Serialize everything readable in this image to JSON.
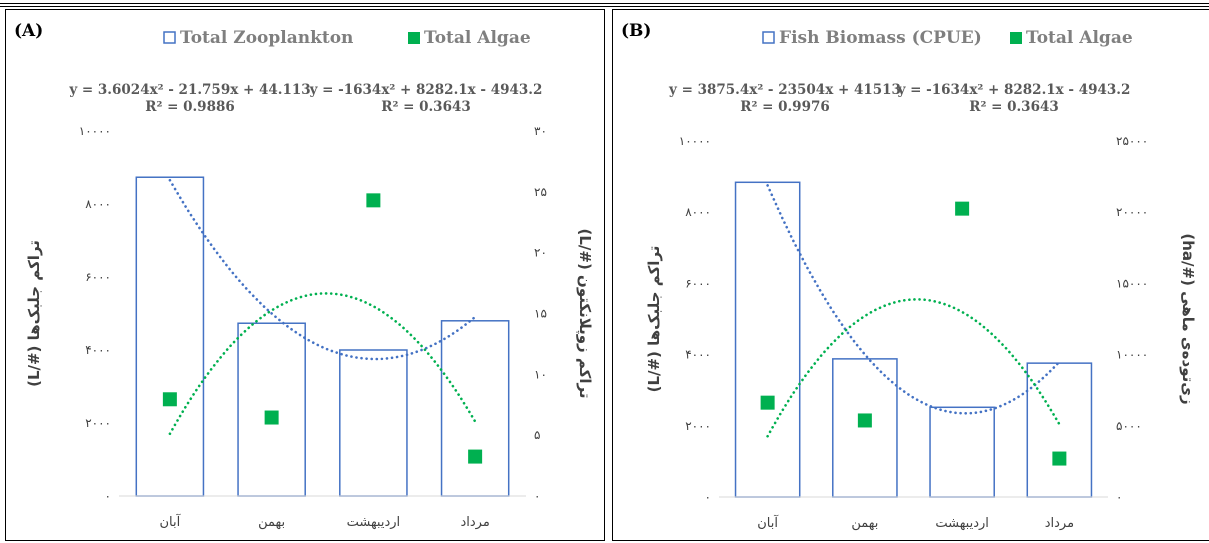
{
  "chart_data": [
    {
      "type": "bar",
      "panel_label": "(A)",
      "categories": [
        "آبان",
        "بهمن",
        "اردیبهشت",
        "مرداد"
      ],
      "series": [
        {
          "name": "Total Zooplankton",
          "kind": "bar",
          "axis": "right",
          "values": [
            26.2,
            14.2,
            12.0,
            14.4
          ],
          "color": "#4472c4"
        },
        {
          "name": "Total Algae",
          "kind": "marker",
          "axis": "left",
          "values": [
            2650,
            2150,
            8100,
            1080
          ],
          "color": "#00b050"
        }
      ],
      "trendlines": [
        {
          "series": "Total Zooplankton",
          "equation": "y = 3.6024x² - 21.759x + 44.113",
          "r2": "R² = 0.9886",
          "coef": [
            3.6024,
            -21.759,
            44.113
          ],
          "axis": "right",
          "color": "#4472c4"
        },
        {
          "series": "Total Algae",
          "equation": "y = -1634x² + 8282.1x - 4943.2",
          "r2": "R² = 0.3643",
          "coef": [
            -1634,
            8282.1,
            -4943.2
          ],
          "axis": "left",
          "color": "#00b050"
        }
      ],
      "ylabel_left": "تراکم جلبک‌ها (#/L)",
      "ylabel_right": "تراکم زوپلانکتون (#/L)",
      "ylim_left": [
        0,
        10000
      ],
      "ylim_right": [
        0,
        30
      ],
      "yticks_left": [
        "۰",
        "۲۰۰۰",
        "۴۰۰۰",
        "۶۰۰۰",
        "۸۰۰۰",
        "۱۰۰۰۰"
      ],
      "yticks_right": [
        "۰",
        "۵",
        "۱۰",
        "۱۵",
        "۲۰",
        "۲۵",
        "۳۰"
      ],
      "legend_position": "top-center",
      "grid": false
    },
    {
      "type": "bar",
      "panel_label": "(B)",
      "categories": [
        "آبان",
        "بهمن",
        "اردیبهشت",
        "مرداد"
      ],
      "series": [
        {
          "name": "Fish Biomass (CPUE)",
          "kind": "bar",
          "axis": "right",
          "values": [
            22100,
            9700,
            6300,
            9400
          ],
          "color": "#4472c4"
        },
        {
          "name": "Total Algae",
          "kind": "marker",
          "axis": "left",
          "values": [
            2650,
            2150,
            8100,
            1080
          ],
          "color": "#00b050"
        }
      ],
      "trendlines": [
        {
          "series": "Fish Biomass (CPUE)",
          "equation": "y = 3875.4x² - 23504x + 41513",
          "r2": "R² = 0.9976",
          "coef": [
            3875.4,
            -23504,
            41513
          ],
          "axis": "right",
          "color": "#4472c4"
        },
        {
          "series": "Total Algae",
          "equation": "y = -1634x² + 8282.1x - 4943.2",
          "r2": "R² = 0.3643",
          "coef": [
            -1634,
            8282.1,
            -4943.2
          ],
          "axis": "left",
          "color": "#00b050"
        }
      ],
      "ylabel_left": "تراکم جلبک‌ها (#/L)",
      "ylabel_right": "زی‌توده‌ی ماهی (#/ha)",
      "ylim_left": [
        0,
        10000
      ],
      "ylim_right": [
        0,
        25000
      ],
      "yticks_left": [
        "۰",
        "۲۰۰۰",
        "۴۰۰۰",
        "۶۰۰۰",
        "۸۰۰۰",
        "۱۰۰۰۰"
      ],
      "yticks_right": [
        "۰",
        "۵۰۰۰",
        "۱۰۰۰۰",
        "۱۵۰۰۰",
        "۲۰۰۰۰",
        "۲۵۰۰۰"
      ],
      "legend_position": "top-center",
      "grid": false
    }
  ]
}
